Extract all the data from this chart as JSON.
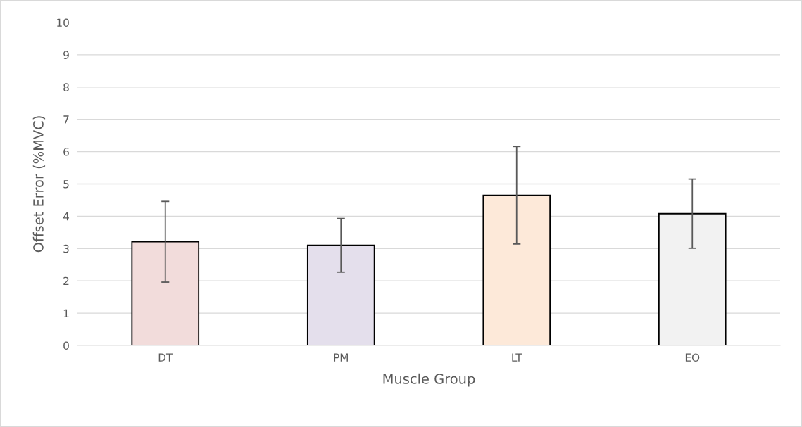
{
  "chart_data": {
    "type": "bar",
    "xlabel": "Muscle Group",
    "ylabel": "Offset Error (%MVC)",
    "categories": [
      "DT",
      "PM",
      "LT",
      "EO"
    ],
    "values": [
      3.21,
      3.1,
      4.65,
      4.08
    ],
    "errors": [
      1.25,
      0.83,
      1.51,
      1.07
    ],
    "colors": [
      "#f2dcdb",
      "#e4dfec",
      "#fde9d9",
      "#f2f2f2"
    ],
    "ylim": [
      0,
      10
    ],
    "yticks": [
      0,
      1,
      2,
      3,
      4,
      5,
      6,
      7,
      8,
      9,
      10
    ],
    "grid": "y"
  }
}
